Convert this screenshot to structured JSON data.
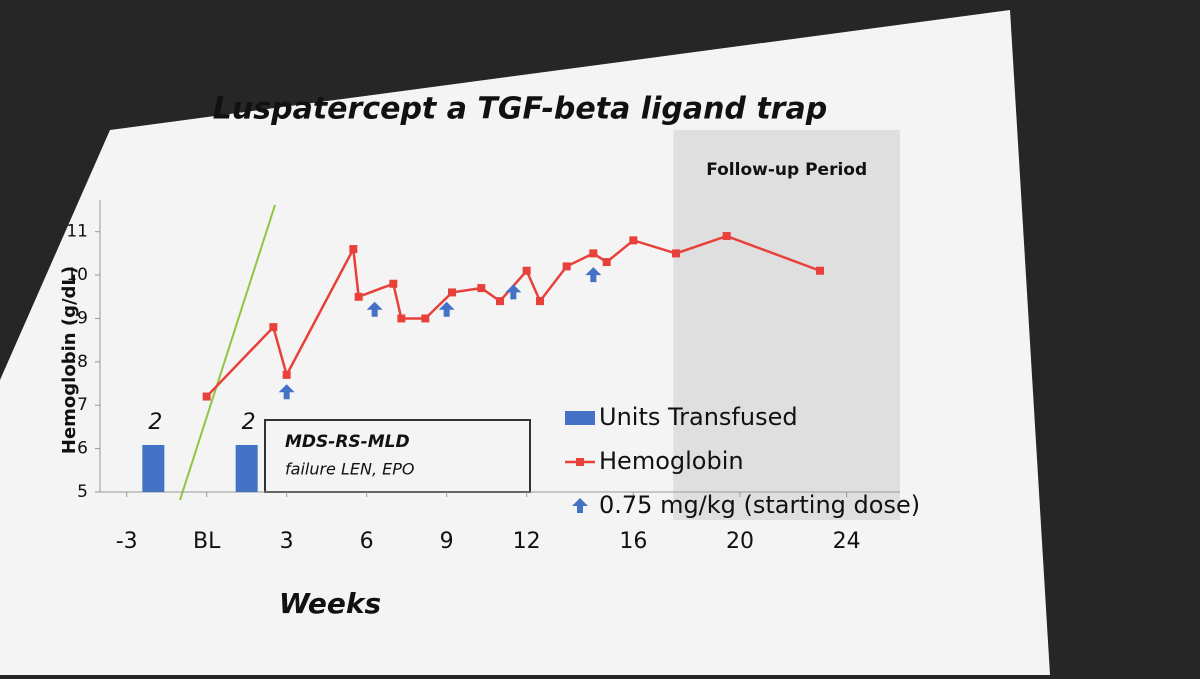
{
  "chart_data": {
    "type": "line",
    "title": "Luspatercept a TGF-beta ligand trap",
    "x_label": "Weeks",
    "y_label": "Hemoglobin (g/dL)",
    "xlim": [
      -4,
      26
    ],
    "xticks": [
      -3,
      {
        "value": 0,
        "label": "BL"
      },
      3,
      6,
      9,
      12,
      16,
      20,
      24
    ],
    "ylim": [
      5,
      11.5
    ],
    "yticks": [
      5,
      6,
      7,
      8,
      9,
      10,
      11
    ],
    "y2lim": [
      0,
      12
    ],
    "legend": "right",
    "followup": {
      "label": "Follow-up Period",
      "x": [
        17.5,
        26
      ]
    },
    "annotation": {
      "title": "MDS-RS-MLD",
      "text": "failure LEN, EPO"
    },
    "series": [
      {
        "name": "Units Transfused",
        "type": "bar",
        "axis": "y2",
        "color": "#4472c4",
        "x": [
          -2,
          1.5
        ],
        "values": [
          2,
          2
        ]
      },
      {
        "name": "Hemoglobin",
        "type": "line",
        "color": "#e8413a",
        "x": [
          0,
          2.5,
          3,
          5.5,
          5.7,
          7,
          7.3,
          8.2,
          9.2,
          10.3,
          11,
          12,
          12.5,
          13.5,
          14.5,
          15,
          16,
          17.6,
          19.5,
          23
        ],
        "values": [
          7.2,
          8.8,
          7.7,
          10.6,
          9.5,
          9.8,
          9.0,
          9.0,
          9.6,
          9.7,
          9.4,
          10.1,
          9.4,
          10.2,
          10.5,
          10.3,
          10.8,
          10.5,
          10.9,
          10.1
        ]
      },
      {
        "name": "0.75 mg/kg (starting dose)",
        "type": "arrow",
        "color": "#4472c4",
        "x": [
          3,
          6.3,
          9,
          11.5,
          14.5
        ],
        "values": [
          7.3,
          9.2,
          9.2,
          9.6,
          10.0
        ]
      }
    ]
  }
}
